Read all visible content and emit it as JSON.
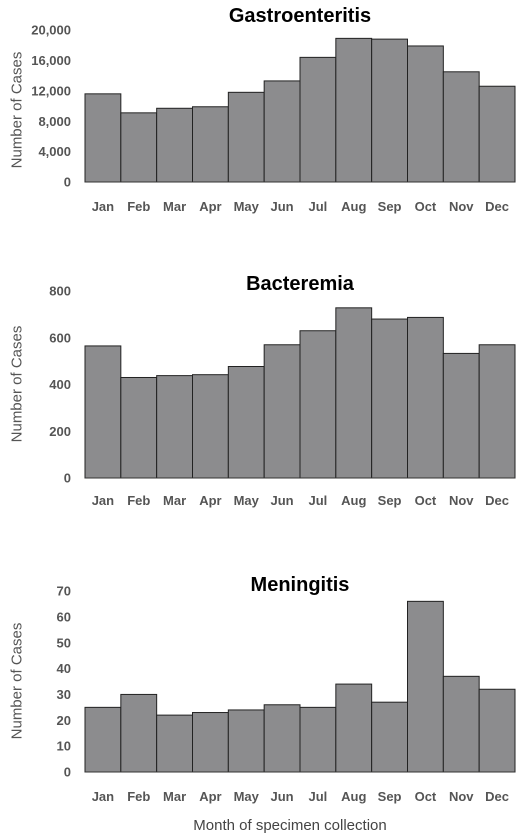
{
  "chart_data": [
    {
      "type": "bar",
      "title": "Gastroenteritis",
      "ylabel": "Number of Cases",
      "xlabel": "",
      "categories": [
        "Jan",
        "Feb",
        "Mar",
        "Apr",
        "May",
        "Jun",
        "Jul",
        "Aug",
        "Sep",
        "Oct",
        "Nov",
        "Dec"
      ],
      "values": [
        11600,
        9100,
        9700,
        9900,
        11800,
        13300,
        16400,
        18900,
        18800,
        17900,
        14500,
        12600
      ],
      "ylim": [
        0,
        20000
      ],
      "yticks": [
        "0",
        "4,000",
        "8,000",
        "12,000",
        "16,000",
        "20,000"
      ],
      "ytick_values": [
        0,
        4000,
        8000,
        12000,
        16000,
        20000
      ],
      "grid": false
    },
    {
      "type": "bar",
      "title": "Bacteremia",
      "ylabel": "Number of Cases",
      "xlabel": "",
      "categories": [
        "Jan",
        "Feb",
        "Mar",
        "Apr",
        "May",
        "Jun",
        "Jul",
        "Aug",
        "Sep",
        "Oct",
        "Nov",
        "Dec"
      ],
      "values": [
        565,
        430,
        438,
        442,
        477,
        570,
        630,
        728,
        680,
        687,
        533,
        570
      ],
      "ylim": [
        0,
        800
      ],
      "yticks": [
        "0",
        "200",
        "400",
        "600",
        "800"
      ],
      "ytick_values": [
        0,
        200,
        400,
        600,
        800
      ],
      "grid": false
    },
    {
      "type": "bar",
      "title": "Meningitis",
      "ylabel": "Number of Cases",
      "xlabel": "Month of specimen collection",
      "categories": [
        "Jan",
        "Feb",
        "Mar",
        "Apr",
        "May",
        "Jun",
        "Jul",
        "Aug",
        "Sep",
        "Oct",
        "Nov",
        "Dec"
      ],
      "values": [
        25,
        30,
        22,
        23,
        24,
        26,
        25,
        34,
        27,
        66,
        37,
        32
      ],
      "ylim": [
        0,
        70
      ],
      "yticks": [
        "0",
        "10",
        "20",
        "30",
        "40",
        "50",
        "60",
        "70"
      ],
      "ytick_values": [
        0,
        10,
        20,
        30,
        40,
        50,
        60,
        70
      ],
      "grid": false
    }
  ]
}
